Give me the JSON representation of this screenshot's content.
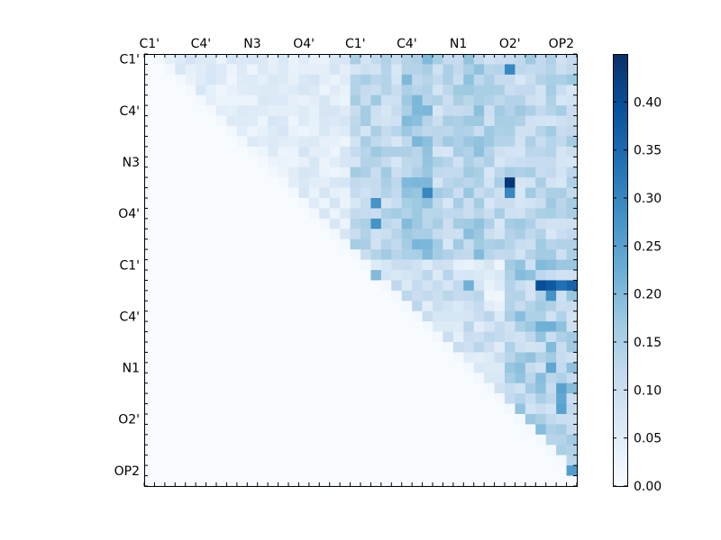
{
  "chart_data": {
    "type": "heatmap",
    "title": "",
    "xlabel": "",
    "ylabel": "",
    "n": 42,
    "x_tick_labels": [
      "C1'",
      "C4'",
      "N3",
      "O4'",
      "C1'",
      "C4'",
      "N1",
      "O2'",
      "OP2"
    ],
    "y_tick_labels": [
      "C1'",
      "C4'",
      "N3",
      "O4'",
      "C1'",
      "C4'",
      "N1",
      "O2'",
      "OP2"
    ],
    "tick_indices": [
      0,
      5,
      10,
      15,
      20,
      25,
      30,
      35,
      40
    ],
    "triangle": "upper",
    "colormap": "Blues",
    "colors": {
      "low": "#f7fbff",
      "high": "#08306b"
    },
    "colorbar": {
      "min": 0.0,
      "max": 0.45,
      "ticks": [
        "0.00",
        "0.05",
        "0.10",
        "0.15",
        "0.20",
        "0.25",
        "0.30",
        "0.35",
        "0.40"
      ],
      "placement": "right"
    },
    "highlights": [
      {
        "row": 12,
        "col": 35,
        "value": 0.44
      },
      {
        "row": 22,
        "col": 38,
        "value": 0.4
      },
      {
        "row": 22,
        "col": 39,
        "value": 0.38
      },
      {
        "row": 22,
        "col": 40,
        "value": 0.34
      },
      {
        "row": 22,
        "col": 41,
        "value": 0.36
      },
      {
        "row": 1,
        "col": 35,
        "value": 0.3
      },
      {
        "row": 13,
        "col": 27,
        "value": 0.3
      },
      {
        "row": 13,
        "col": 35,
        "value": 0.3
      },
      {
        "row": 14,
        "col": 22,
        "value": 0.28
      },
      {
        "row": 16,
        "col": 22,
        "value": 0.28
      },
      {
        "row": 23,
        "col": 39,
        "value": 0.28
      },
      {
        "row": 40,
        "col": 41,
        "value": 0.26
      },
      {
        "row": 32,
        "col": 40,
        "value": 0.25
      },
      {
        "row": 30,
        "col": 39,
        "value": 0.24
      },
      {
        "row": 33,
        "col": 40,
        "value": 0.24
      },
      {
        "row": 34,
        "col": 40,
        "value": 0.25
      },
      {
        "row": 22,
        "col": 31,
        "value": 0.22
      },
      {
        "row": 20,
        "col": 38,
        "value": 0.2
      },
      {
        "row": 21,
        "col": 22,
        "value": 0.2
      },
      {
        "row": 26,
        "col": 38,
        "value": 0.22
      },
      {
        "row": 26,
        "col": 39,
        "value": 0.22
      },
      {
        "row": 28,
        "col": 39,
        "value": 0.2
      }
    ]
  }
}
